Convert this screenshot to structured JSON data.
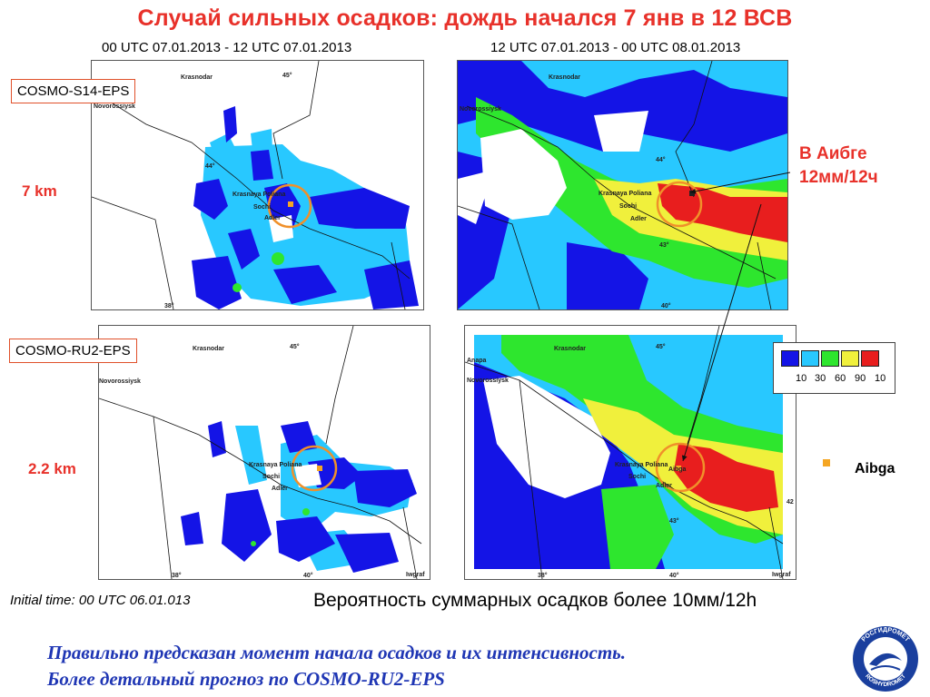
{
  "title": "Случай сильных осадков: дождь начался 7 янв в 12  ВСВ",
  "periods": [
    "00 UTC 07.01.2013 - 12 UTC 07.01.2013",
    "12 UTC 07.01.2013 - 00 UTC 08.01.2013"
  ],
  "models": [
    {
      "name": "COSMO-S14-EPS",
      "resolution": "7 km"
    },
    {
      "name": "COSMO-RU2-EPS",
      "resolution": "2.2 km"
    }
  ],
  "callout": {
    "line1": "В Аибге",
    "line2": "12мм/12ч"
  },
  "legend": {
    "colors": [
      "#1414e6",
      "#28c8ff",
      "#2ee62e",
      "#f0f03c",
      "#e81e1e"
    ],
    "labels": [
      "10",
      "30",
      "60",
      "90",
      "10"
    ]
  },
  "map_labels": {
    "krasnodar": "Krasnodar",
    "novorossiysk": "Novorossiysk",
    "krasnaya_polyana": "Krasnaya Poliana",
    "sochi": "Sochi",
    "adler": "Adler",
    "aibga": "Aibga",
    "anapa": "Anapa",
    "lon38": "38°",
    "lon40": "40°",
    "lon45": "45°",
    "lat44": "44°",
    "lat43": "43°",
    "lat42": "42",
    "credit": "Iwgraf"
  },
  "marker_legend": {
    "label": "Aibga",
    "color": "#f5a623"
  },
  "initial_time": "Initial time: 00 UTC 06.01.013",
  "probability_caption": "Вероятность суммарных осадков более 10мм/12h",
  "conclusion": [
    "Правильно предсказан момент начала осадков и их интенсивность.",
    "Более детальный прогноз по COSMO-RU2-EPS"
  ],
  "logo": {
    "top_text": "РОСГИДРОМЕТ",
    "bottom_text": "ROSHYDROMET"
  }
}
